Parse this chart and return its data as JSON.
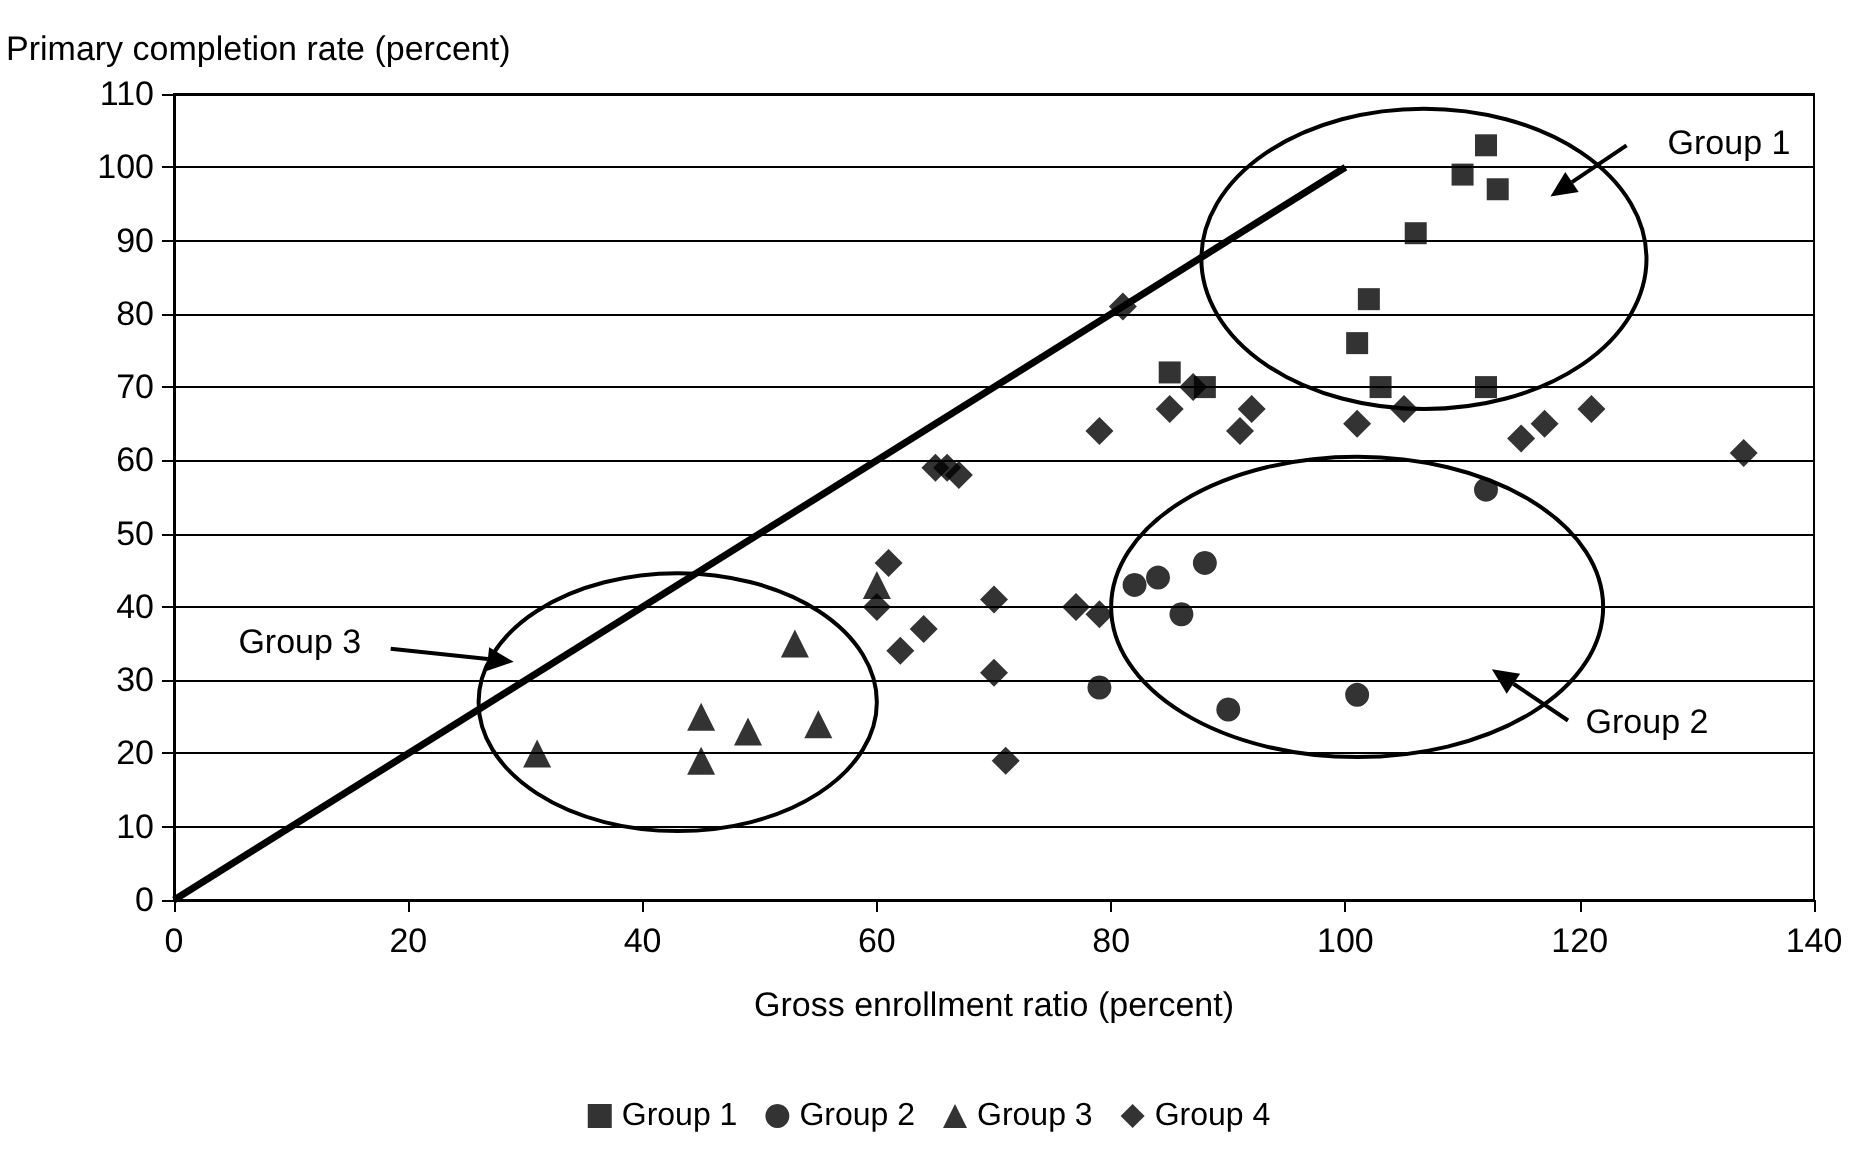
{
  "chart_data": {
    "type": "scatter",
    "xlabel": "Gross enrollment ratio (percent)",
    "ylabel": "Primary completion rate (percent)",
    "xlim": [
      0,
      140
    ],
    "xticks": [
      0,
      20,
      40,
      60,
      80,
      100,
      120,
      140
    ],
    "ylim": [
      0,
      110
    ],
    "yticks": [
      0,
      10,
      20,
      30,
      40,
      50,
      60,
      70,
      80,
      90,
      100,
      110
    ],
    "grid": "y",
    "legend": "bottom",
    "series": [
      {
        "name": "Group 1",
        "color": "#000000",
        "marker": "square",
        "x": [
          85,
          88,
          101,
          102,
          103,
          106,
          110,
          112,
          113,
          112
        ],
        "values": [
          72,
          70,
          76,
          82,
          70,
          91,
          99,
          103,
          97,
          70
        ]
      },
      {
        "name": "Group 2",
        "color": "#000000",
        "marker": "circle",
        "x": [
          79,
          82,
          84,
          86,
          88,
          90,
          101,
          112
        ],
        "values": [
          29,
          43,
          44,
          39,
          46,
          26,
          28,
          56
        ]
      },
      {
        "name": "Group 3",
        "color": "#000000",
        "marker": "triangle",
        "x": [
          31,
          45,
          45,
          49,
          53,
          55,
          60
        ],
        "values": [
          20,
          25,
          19,
          23,
          35,
          24,
          43
        ]
      },
      {
        "name": "Group 4",
        "color": "#000000",
        "marker": "diamond",
        "x": [
          60,
          61,
          62,
          64,
          65,
          66,
          67,
          70,
          70,
          71,
          77,
          79,
          79,
          81,
          85,
          87,
          91,
          92,
          101,
          105,
          115,
          117,
          121,
          134
        ],
        "values": [
          40,
          46,
          34,
          37,
          59,
          59,
          58,
          41,
          31,
          19,
          40,
          39,
          64,
          81,
          67,
          70,
          64,
          67,
          65,
          67,
          63,
          65,
          67,
          61
        ]
      },
      {
        "type": "line",
        "color": "#000000",
        "marker": "none",
        "x": [
          0,
          100
        ],
        "values": [
          0,
          100
        ]
      }
    ],
    "annotations": [
      "Group 1",
      "Group 2",
      "Group 3"
    ]
  }
}
